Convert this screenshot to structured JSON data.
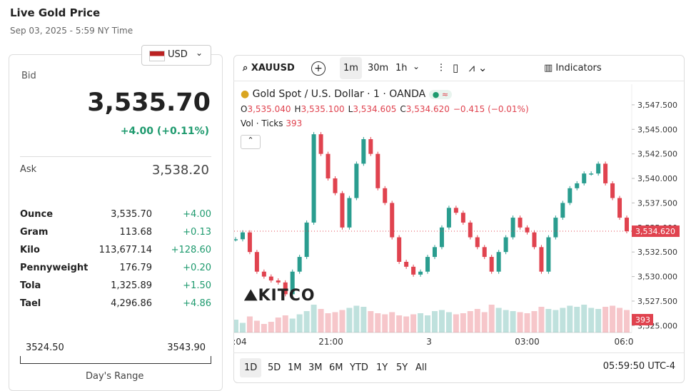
{
  "header": {
    "title": "Live Gold Price",
    "subtitle": "Sep 03, 2025 - 5:59 NY Time",
    "currency": "USD"
  },
  "quote": {
    "bid_label": "Bid",
    "bid": "3,535.70",
    "change": "+4.00 (+0.11%)",
    "ask_label": "Ask",
    "ask": "3,538.20",
    "rows": [
      [
        "Ounce",
        "3,535.70",
        "+4.00"
      ],
      [
        "Gram",
        "113.68",
        "+0.13"
      ],
      [
        "Kilo",
        "113,677.14",
        "+128.60"
      ],
      [
        "Pennyweight",
        "176.79",
        "+0.20"
      ],
      [
        "Tola",
        "1,325.89",
        "+1.50"
      ],
      [
        "Tael",
        "4,296.86",
        "+4.86"
      ]
    ],
    "range_low": "3524.50",
    "range_high": "3543.90",
    "range_label": "Day's Range"
  },
  "toolbar": {
    "symbol": "XAUUSD",
    "intervals": [
      "1m",
      "30m",
      "1h"
    ],
    "indicators": "Indicators"
  },
  "legend": {
    "title": "Gold Spot / U.S. Dollar · 1 · OANDA",
    "ohlc": [
      [
        "O",
        "3,535.040"
      ],
      [
        "H",
        "3,535.100"
      ],
      [
        "L",
        "3,534.605"
      ],
      [
        "C",
        "3,534.620"
      ]
    ],
    "change": "−0.415 (−0.01%)",
    "volume_label": "Vol · Ticks",
    "volume_value": "393"
  },
  "ranges": [
    "1D",
    "5D",
    "1M",
    "3M",
    "6M",
    "YTD",
    "1Y",
    "5Y",
    "All"
  ],
  "clock": "05:59:50 UTC-4",
  "logo": "KITCO",
  "chart_data": {
    "type": "candlestick",
    "up_color": "#2a9d8f",
    "down_color": "#e0434f",
    "values": [
      3533.8,
      3534.5,
      3532.5,
      3530.5,
      3530.0,
      3529.6,
      3529.4,
      3528.2,
      3530.5,
      3532.0,
      3535.5,
      3544.5,
      3542.5,
      3540.0,
      3538.5,
      3535.0,
      3538.0,
      3541.5,
      3544.0,
      3542.5,
      3539.0,
      3537.5,
      3534.0,
      3531.5,
      3531.0,
      3530.2,
      3530.5,
      3532.0,
      3533.0,
      3535.0,
      3537.0,
      3536.5,
      3535.5,
      3534.0,
      3533.0,
      3532.0,
      3530.5,
      3532.5,
      3534.0,
      3536.0,
      3535.0,
      3534.5,
      3533.0,
      3530.5,
      3534.0,
      3536.0,
      3537.5,
      3539.0,
      3539.5,
      3540.5,
      3540.5,
      3541.5,
      3539.5,
      3538.0,
      3536.0,
      3534.62
    ],
    "volume": [
      120,
      90,
      150,
      110,
      80,
      100,
      140,
      160,
      130,
      170,
      200,
      260,
      220,
      180,
      190,
      210,
      230,
      250,
      240,
      200,
      180,
      170,
      190,
      160,
      150,
      170,
      180,
      160,
      200,
      210,
      190,
      170,
      180,
      200,
      220,
      190,
      260,
      230,
      210,
      200,
      190,
      180,
      200,
      240,
      220,
      210,
      230,
      250,
      240,
      260,
      230,
      220,
      240,
      250,
      230,
      210
    ],
    "vlim": [
      0,
      600
    ],
    "xlim": [
      0,
      55
    ],
    "ylim": [
      3524.3,
      3549.6
    ],
    "yticks": [
      {
        "value": 3525,
        "label": "3,525.000"
      },
      {
        "value": 3527.5,
        "label": "3,527.500"
      },
      {
        "value": 3530,
        "label": "3,530.000"
      },
      {
        "value": 3532.5,
        "label": "3,532.500"
      },
      {
        "value": 3535,
        "label": "3,535.000"
      },
      {
        "value": 3537.5,
        "label": "3,537.500"
      },
      {
        "value": 3540,
        "label": "3,540.000"
      },
      {
        "value": 3542.5,
        "label": "3,542.500"
      },
      {
        "value": 3545,
        "label": "3,545.000"
      },
      {
        "value": 3547.5,
        "label": "3,547.500"
      }
    ],
    "xticks": [
      {
        "value": 0.6,
        "label": ":04"
      },
      {
        "value": 13.4,
        "label": "21:00"
      },
      {
        "value": 27.2,
        "label": "3"
      },
      {
        "value": 41,
        "label": "03:00"
      },
      {
        "value": 54.6,
        "label": "06:0"
      }
    ],
    "last": {
      "value": 3534.62,
      "label": "3,534.620"
    }
  }
}
